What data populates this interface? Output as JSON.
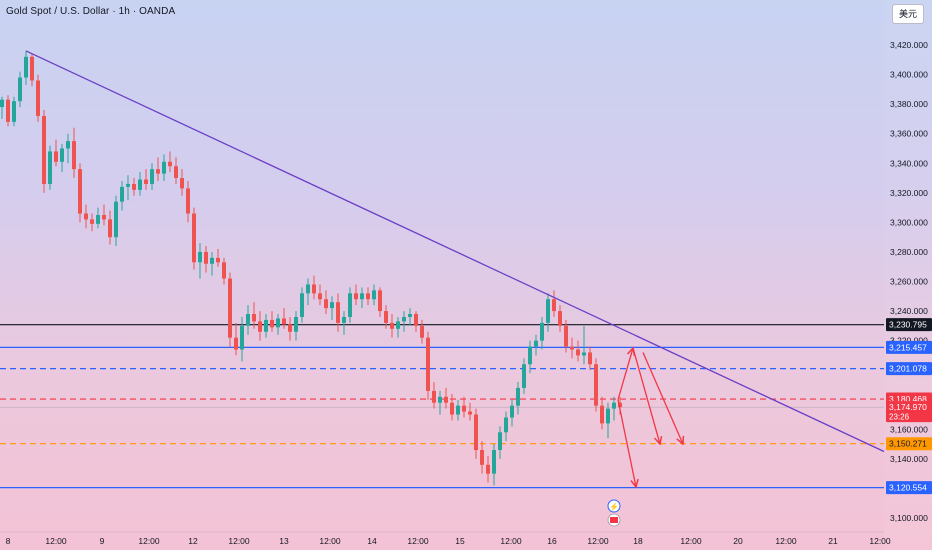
{
  "header": {
    "title": "Gold Spot / U.S. Dollar · 1h · OANDA",
    "currency_button": "美元"
  },
  "countdown": "23:26",
  "colors": {
    "up": "#26a69a",
    "down": "#ef5350",
    "trendline": "#6a3fc7",
    "blue_level": "#2962ff",
    "red_level": "#f23645",
    "orange_level": "#ff9800",
    "black_level": "#131722",
    "arrow": "#f23645"
  },
  "chart_data": {
    "type": "candlestick",
    "instrument": "Gold Spot / U.S. Dollar",
    "timeframe": "1h",
    "source": "OANDA",
    "ylim": [
      3095,
      3432
    ],
    "y_ticks": [
      "3,420.000",
      "3,400.000",
      "3,380.000",
      "3,360.000",
      "3,340.000",
      "3,320.000",
      "3,300.000",
      "3,280.000",
      "3,260.000",
      "3,240.000",
      "3,220.000",
      "3,160.000",
      "3,140.000",
      "3,100.000"
    ],
    "x_ticks": [
      "8",
      "12:00",
      "9",
      "12:00",
      "12",
      "12:00",
      "13",
      "12:00",
      "14",
      "12:00",
      "15",
      "12:00",
      "16",
      "12:00",
      "18",
      "12:00",
      "20",
      "12:00",
      "21",
      "12:00"
    ],
    "price_levels": [
      {
        "label": "3,230.795",
        "value": 3230.795,
        "style": "solid",
        "color": "#131722",
        "text_color": "#ffffff"
      },
      {
        "label": "3,215.457",
        "value": 3215.457,
        "style": "solid",
        "color": "#2962ff",
        "text_color": "#ffffff"
      },
      {
        "label": "3,201.078",
        "value": 3201.078,
        "style": "dashed",
        "color": "#2962ff",
        "text_color": "#ffffff"
      },
      {
        "label": "3,180.468",
        "value": 3180.468,
        "style": "dashed",
        "color": "#f23645",
        "text_color": "#ffffff"
      },
      {
        "label": "3,150.271",
        "value": 3150.271,
        "style": "dashed",
        "color": "#ff9800",
        "text_color": "#131722"
      },
      {
        "label": "3,120.554",
        "value": 3120.554,
        "style": "solid",
        "color": "#2962ff",
        "text_color": "#ffffff"
      }
    ],
    "current_price": {
      "label": "3,174.970",
      "value": 3174.97,
      "countdown": "23:26"
    },
    "trendline": {
      "from": {
        "t": 26,
        "price": 3416
      },
      "to": {
        "t": 884,
        "price": 3145
      }
    },
    "projection_arrows": [
      {
        "from": {
          "t": 618,
          "price": 3180
        },
        "to": {
          "t": 633,
          "price": 3215
        }
      },
      {
        "from": {
          "t": 633,
          "price": 3215
        },
        "to": {
          "t": 660,
          "price": 3150
        }
      },
      {
        "from": {
          "t": 643,
          "price": 3212
        },
        "to": {
          "t": 683,
          "price": 3150
        }
      },
      {
        "from": {
          "t": 618,
          "price": 3180
        },
        "to": {
          "t": 636,
          "price": 3121
        }
      }
    ],
    "candles": [
      [
        2,
        3378,
        3385,
        3370,
        3383
      ],
      [
        8,
        3383,
        3386,
        3365,
        3368
      ],
      [
        14,
        3368,
        3385,
        3365,
        3382
      ],
      [
        20,
        3382,
        3402,
        3378,
        3398
      ],
      [
        26,
        3398,
        3416,
        3393,
        3412
      ],
      [
        32,
        3412,
        3414,
        3392,
        3396
      ],
      [
        38,
        3396,
        3400,
        3368,
        3372
      ],
      [
        44,
        3372,
        3376,
        3320,
        3326
      ],
      [
        50,
        3326,
        3352,
        3322,
        3348
      ],
      [
        56,
        3348,
        3356,
        3338,
        3341
      ],
      [
        62,
        3341,
        3353,
        3334,
        3350
      ],
      [
        68,
        3350,
        3360,
        3340,
        3355
      ],
      [
        74,
        3355,
        3364,
        3330,
        3336
      ],
      [
        80,
        3336,
        3340,
        3300,
        3306
      ],
      [
        86,
        3306,
        3312,
        3296,
        3302
      ],
      [
        92,
        3302,
        3306,
        3294,
        3299
      ],
      [
        98,
        3299,
        3310,
        3296,
        3305
      ],
      [
        104,
        3305,
        3312,
        3298,
        3302
      ],
      [
        110,
        3302,
        3308,
        3285,
        3290
      ],
      [
        116,
        3290,
        3318,
        3284,
        3314
      ],
      [
        122,
        3314,
        3328,
        3308,
        3324
      ],
      [
        128,
        3324,
        3332,
        3315,
        3326
      ],
      [
        134,
        3326,
        3330,
        3318,
        3322
      ],
      [
        140,
        3322,
        3334,
        3318,
        3329
      ],
      [
        146,
        3329,
        3336,
        3322,
        3326
      ],
      [
        152,
        3326,
        3340,
        3322,
        3336
      ],
      [
        158,
        3336,
        3344,
        3328,
        3333
      ],
      [
        164,
        3333,
        3346,
        3328,
        3341
      ],
      [
        170,
        3341,
        3348,
        3334,
        3338
      ],
      [
        176,
        3338,
        3344,
        3326,
        3330
      ],
      [
        182,
        3330,
        3336,
        3318,
        3323
      ],
      [
        188,
        3323,
        3328,
        3300,
        3306
      ],
      [
        194,
        3306,
        3310,
        3268,
        3273
      ],
      [
        200,
        3273,
        3286,
        3262,
        3280
      ],
      [
        206,
        3280,
        3284,
        3266,
        3272
      ],
      [
        212,
        3272,
        3280,
        3264,
        3276
      ],
      [
        218,
        3276,
        3282,
        3270,
        3273
      ],
      [
        224,
        3273,
        3276,
        3258,
        3262
      ],
      [
        230,
        3262,
        3266,
        3216,
        3222
      ],
      [
        236,
        3222,
        3232,
        3210,
        3214
      ],
      [
        242,
        3214,
        3236,
        3206,
        3230
      ],
      [
        248,
        3230,
        3244,
        3224,
        3238
      ],
      [
        254,
        3238,
        3246,
        3228,
        3233
      ],
      [
        260,
        3233,
        3240,
        3220,
        3226
      ],
      [
        266,
        3226,
        3238,
        3222,
        3234
      ],
      [
        272,
        3234,
        3240,
        3226,
        3229
      ],
      [
        278,
        3229,
        3238,
        3224,
        3235
      ],
      [
        284,
        3235,
        3242,
        3228,
        3231
      ],
      [
        290,
        3231,
        3236,
        3220,
        3226
      ],
      [
        296,
        3226,
        3240,
        3220,
        3236
      ],
      [
        302,
        3236,
        3256,
        3232,
        3252
      ],
      [
        308,
        3252,
        3262,
        3244,
        3258
      ],
      [
        314,
        3258,
        3264,
        3248,
        3252
      ],
      [
        320,
        3252,
        3258,
        3244,
        3248
      ],
      [
        326,
        3248,
        3254,
        3238,
        3242
      ],
      [
        332,
        3242,
        3250,
        3234,
        3246
      ],
      [
        338,
        3246,
        3252,
        3226,
        3232
      ],
      [
        344,
        3232,
        3240,
        3224,
        3236
      ],
      [
        350,
        3236,
        3256,
        3232,
        3252
      ],
      [
        356,
        3252,
        3258,
        3244,
        3248
      ],
      [
        362,
        3248,
        3256,
        3242,
        3252
      ],
      [
        368,
        3252,
        3256,
        3244,
        3248
      ],
      [
        374,
        3248,
        3258,
        3244,
        3254
      ],
      [
        380,
        3254,
        3256,
        3236,
        3240
      ],
      [
        386,
        3240,
        3244,
        3228,
        3232
      ],
      [
        392,
        3232,
        3238,
        3222,
        3228
      ],
      [
        398,
        3228,
        3236,
        3222,
        3233
      ],
      [
        404,
        3233,
        3240,
        3226,
        3236
      ],
      [
        410,
        3236,
        3242,
        3230,
        3238
      ],
      [
        416,
        3238,
        3240,
        3226,
        3230
      ],
      [
        422,
        3230,
        3234,
        3218,
        3222
      ],
      [
        428,
        3222,
        3226,
        3180,
        3186
      ],
      [
        434,
        3186,
        3192,
        3174,
        3178
      ],
      [
        440,
        3178,
        3186,
        3170,
        3182
      ],
      [
        446,
        3182,
        3188,
        3174,
        3178
      ],
      [
        452,
        3178,
        3184,
        3166,
        3170
      ],
      [
        458,
        3170,
        3180,
        3166,
        3176
      ],
      [
        464,
        3176,
        3182,
        3168,
        3172
      ],
      [
        470,
        3172,
        3178,
        3166,
        3170
      ],
      [
        476,
        3170,
        3174,
        3140,
        3146
      ],
      [
        482,
        3146,
        3152,
        3130,
        3136
      ],
      [
        488,
        3136,
        3142,
        3124,
        3130
      ],
      [
        494,
        3130,
        3150,
        3122,
        3146
      ],
      [
        500,
        3146,
        3162,
        3140,
        3158
      ],
      [
        506,
        3158,
        3172,
        3152,
        3168
      ],
      [
        512,
        3168,
        3180,
        3162,
        3176
      ],
      [
        518,
        3176,
        3192,
        3170,
        3188
      ],
      [
        524,
        3188,
        3208,
        3184,
        3204
      ],
      [
        530,
        3204,
        3220,
        3198,
        3216
      ],
      [
        536,
        3216,
        3224,
        3210,
        3220
      ],
      [
        542,
        3220,
        3236,
        3214,
        3232
      ],
      [
        548,
        3232,
        3252,
        3226,
        3248
      ],
      [
        554,
        3248,
        3254,
        3236,
        3240
      ],
      [
        560,
        3240,
        3244,
        3226,
        3230
      ],
      [
        566,
        3230,
        3234,
        3212,
        3216
      ],
      [
        572,
        3216,
        3222,
        3208,
        3214
      ],
      [
        578,
        3214,
        3220,
        3206,
        3210
      ],
      [
        584,
        3210,
        3230,
        3204,
        3212
      ],
      [
        590,
        3212,
        3216,
        3200,
        3204
      ],
      [
        596,
        3204,
        3208,
        3172,
        3176
      ],
      [
        602,
        3176,
        3182,
        3160,
        3164
      ],
      [
        608,
        3164,
        3178,
        3154,
        3174
      ],
      [
        614,
        3174,
        3182,
        3166,
        3178
      ],
      [
        620,
        3178,
        3182,
        3170,
        3175
      ]
    ]
  }
}
